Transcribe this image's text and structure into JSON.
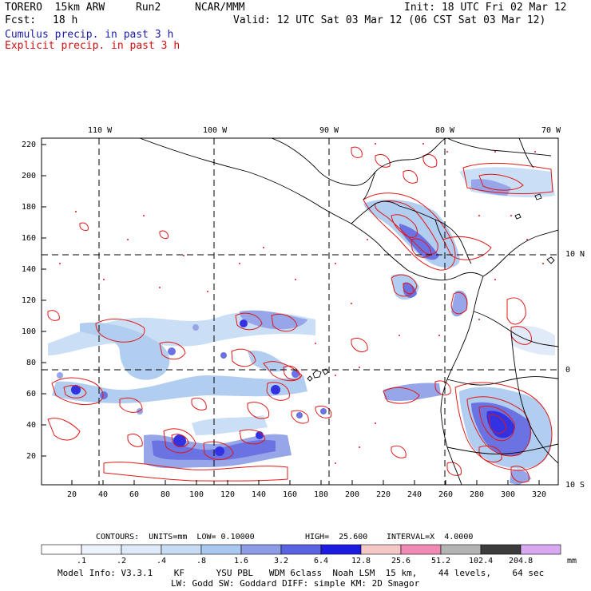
{
  "header": {
    "model": "TORERO  15km ARW",
    "run": "Run2",
    "org": "NCAR/MMM",
    "init": "Init: 18 UTC Fri 02 Mar 12",
    "fcst_label": "Fcst:",
    "fcst_value": "18 h",
    "valid": "Valid: 12 UTC Sat 03 Mar 12 (06 CST Sat 03 Mar 12)",
    "field1": "Cumulus precip. in past 3 h",
    "field2": "Explicit precip. in past 3 h"
  },
  "map": {
    "lon_labels": [
      "110 W",
      "100 W",
      "90 W",
      "80 W",
      "70 W"
    ],
    "lat_labels": [
      "10 N",
      "0",
      "10 S"
    ],
    "y_ticks": [
      "220",
      "200",
      "180",
      "160",
      "140",
      "120",
      "100",
      "80",
      "60",
      "40",
      "20"
    ],
    "x_ticks": [
      "20",
      "40",
      "60",
      "80",
      "100",
      "120",
      "140",
      "160",
      "180",
      "200",
      "220",
      "240",
      "260",
      "280",
      "300",
      "320"
    ]
  },
  "contours": {
    "units": "CONTOURS:  UNITS=mm  LOW= 0.10000",
    "high": "HIGH=  25.600",
    "interval": "INTERVAL=X  4.0000"
  },
  "colorbar": {
    "labels": [
      ".1",
      ".2",
      ".4",
      ".8",
      "1.6",
      "3.2",
      "6.4",
      "12.8",
      "25.6",
      "51.2",
      "102.4",
      "204.8"
    ],
    "unit": "mm",
    "colors": [
      "#ffffff",
      "#eef3fb",
      "#dde8f8",
      "#c5dcf4",
      "#a9c8ef",
      "#8c9de6",
      "#5b64e0",
      "#1c1ce0",
      "#f5c8c8",
      "#f08cb4",
      "#b4b4b4",
      "#3c3c3c",
      "#d8a8f0"
    ]
  },
  "footer": {
    "line1": "Model Info: V3.3.1    KF      YSU PBL   WDM 6class  Noah LSM  15 km,    44 levels,    64 sec",
    "line2": "LW: Godd SW: Goddard DIFF: simple KM: 2D Smagor"
  }
}
